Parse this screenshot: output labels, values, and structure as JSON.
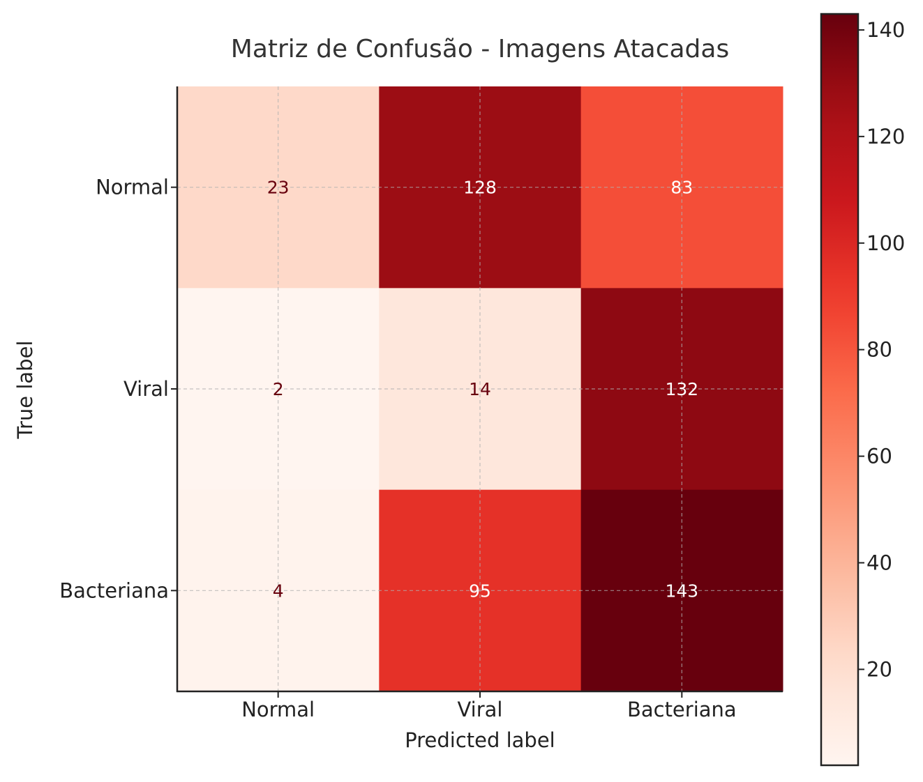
{
  "chart_data": {
    "type": "heatmap",
    "title": "Matriz de Confusão - Imagens Atacadas",
    "xlabel": "Predicted label",
    "ylabel": "True label",
    "x_categories": [
      "Normal",
      "Viral",
      "Bacteriana"
    ],
    "y_categories": [
      "Normal",
      "Viral",
      "Bacteriana"
    ],
    "values": [
      [
        23,
        128,
        83
      ],
      [
        2,
        14,
        132
      ],
      [
        4,
        95,
        143
      ]
    ],
    "colormap": "Reds",
    "color_range": [
      2,
      143
    ],
    "colorbar_ticks": [
      20,
      40,
      60,
      80,
      100,
      120,
      140
    ],
    "grid": true
  }
}
